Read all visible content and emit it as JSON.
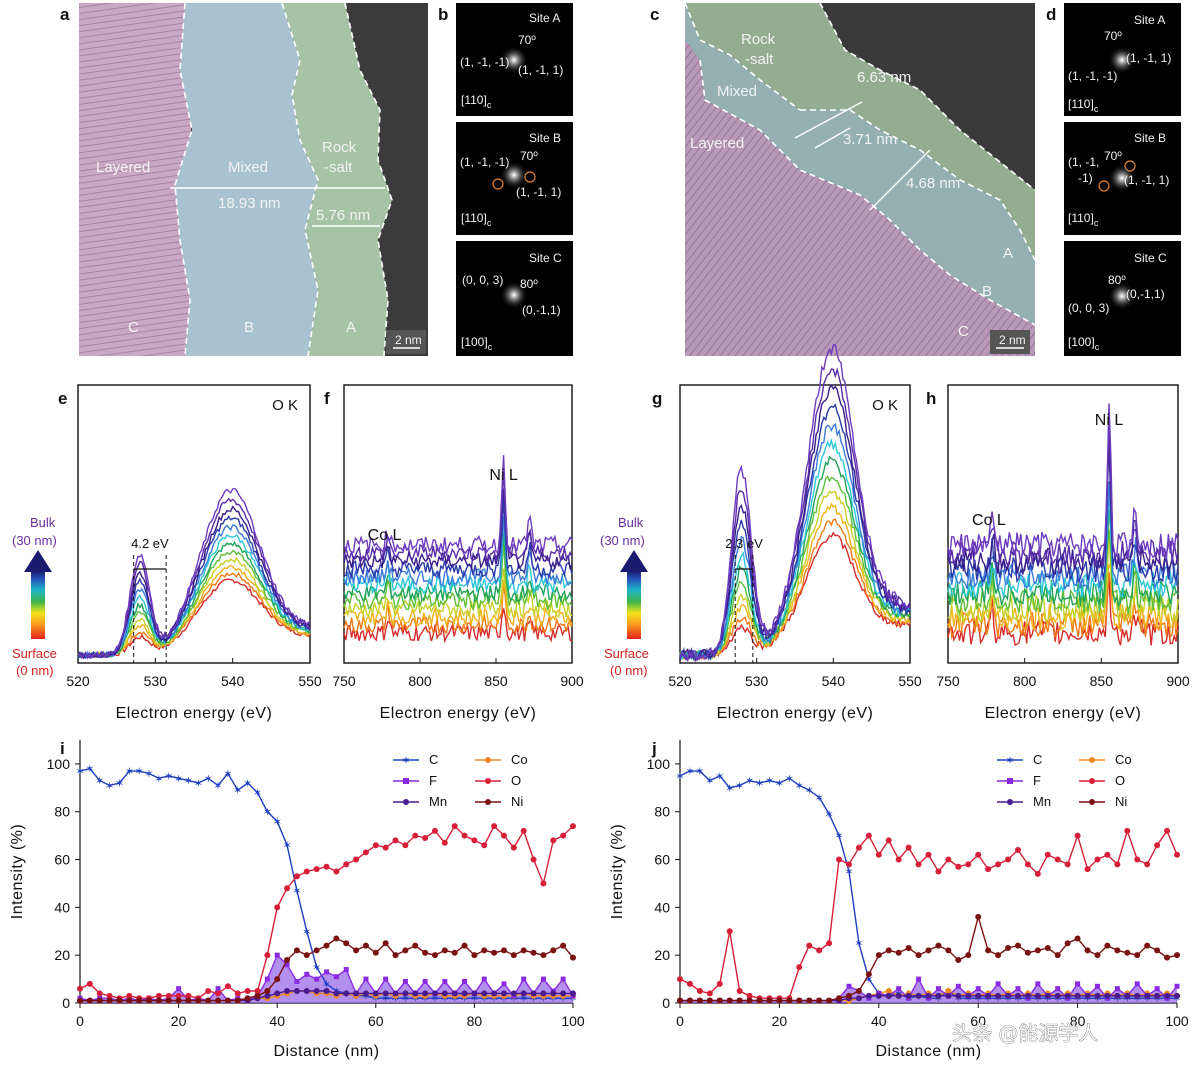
{
  "panels": {
    "a": {
      "letter": "a",
      "regions": [
        "Layered",
        "Mixed",
        "Rock",
        "-salt"
      ],
      "sites": [
        "C",
        "B",
        "A"
      ],
      "widths": [
        "18.93 nm",
        "5.76 nm"
      ],
      "scale": "2 nm"
    },
    "b": {
      "letter": "b",
      "sites": [
        {
          "title": "Site A",
          "angle": "70º",
          "spots": [
            "(1, -1, -1)",
            "(1, -1, 1)"
          ],
          "zone": "[110]",
          "sub": "c"
        },
        {
          "title": "Site B",
          "angle": "70º",
          "spots": [
            "(1, -1, -1)",
            "(1, -1, 1)"
          ],
          "zone": "[110]",
          "sub": "c"
        },
        {
          "title": "Site C",
          "angle": "80º",
          "spots": [
            "(0, 0, 3)",
            "(0,-1,1)"
          ],
          "zone": "[100]",
          "sub": "c"
        }
      ]
    },
    "c": {
      "letter": "c",
      "regions": [
        "Rock",
        "-salt",
        "Mixed",
        "Layered"
      ],
      "sites": [
        "A",
        "B",
        "C"
      ],
      "widths": [
        "6.63 nm",
        "3.71 nm",
        "4.68 nm"
      ],
      "scale": "2 nm"
    },
    "d": {
      "letter": "d",
      "sites": [
        {
          "title": "Site A",
          "angle": "70º",
          "spots": [
            "(1, -1, -1)",
            "(1, -1, 1)"
          ],
          "zone": "[110]",
          "sub": "c"
        },
        {
          "title": "Site B",
          "angle": "70º",
          "spots": [
            "(1, -1,",
            "-1)",
            "(1, -1, 1)"
          ],
          "zone": "[110]",
          "sub": "c"
        },
        {
          "title": "Site C",
          "angle": "80º",
          "spots": [
            "(0,-1,1)",
            "(0, 0, 3)"
          ],
          "zone": "[100]",
          "sub": "c"
        }
      ]
    }
  },
  "colorbar": {
    "top": [
      "Bulk",
      "(30 nm)"
    ],
    "bottom": [
      "Surface",
      "(0 nm)"
    ]
  },
  "chart_data": [
    {
      "id": "e",
      "type": "line",
      "title": "O K",
      "xlabel": "Electron energy (eV)",
      "ylabel": "",
      "xlim": [
        520,
        550
      ],
      "xticks": [
        520,
        530,
        540,
        550
      ],
      "annotation": {
        "label": "4.2 eV",
        "from": 527.2,
        "to": 531.4
      },
      "series_colors": [
        "#d62b2b",
        "#f07a1a",
        "#f2b21a",
        "#c8d12a",
        "#5fbf3a",
        "#1fa35a",
        "#2cc8d8",
        "#3a7ad8",
        "#2a3aa8",
        "#3a1f8a",
        "#5a2ca8",
        "#6e3cbf"
      ],
      "peak_energy": [
        528,
        540
      ],
      "energies": [
        520,
        521,
        522,
        523,
        524,
        525,
        526,
        527,
        528,
        529,
        530,
        531,
        532,
        533,
        534,
        535,
        536,
        537,
        538,
        539,
        540,
        541,
        542,
        543,
        544,
        545,
        546,
        547,
        548,
        549,
        550
      ]
    },
    {
      "id": "f",
      "type": "line",
      "title": "",
      "xlabel": "Electron energy (eV)",
      "xlim": [
        750,
        900
      ],
      "xticks": [
        750,
        800,
        850,
        900
      ],
      "annotations": [
        {
          "label": "Co L",
          "x": 778
        },
        {
          "label": "Ni L",
          "x": 855
        }
      ]
    },
    {
      "id": "g",
      "type": "line",
      "title": "O K",
      "xlabel": "Electron energy (eV)",
      "xlim": [
        520,
        550
      ],
      "xticks": [
        520,
        530,
        540,
        550
      ],
      "annotation": {
        "label": "2.3 eV",
        "from": 527.2,
        "to": 529.5
      }
    },
    {
      "id": "h",
      "type": "line",
      "title": "",
      "xlabel": "Electron energy (eV)",
      "xlim": [
        750,
        900
      ],
      "xticks": [
        750,
        800,
        850,
        900
      ],
      "annotations": [
        {
          "label": "Co L",
          "x": 778
        },
        {
          "label": "Ni L",
          "x": 855
        }
      ]
    },
    {
      "id": "i",
      "type": "line",
      "xlabel": "Distance (nm)",
      "ylabel": "Intensity (%)",
      "xlim": [
        0,
        100
      ],
      "ylim": [
        0,
        110
      ],
      "xticks": [
        0,
        20,
        40,
        60,
        80,
        100
      ],
      "yticks": [
        0,
        20,
        40,
        60,
        80,
        100
      ],
      "legend": [
        "C",
        "Co",
        "F",
        "O",
        "Mn",
        "Ni"
      ],
      "x": [
        0,
        2,
        4,
        6,
        8,
        10,
        12,
        14,
        16,
        18,
        20,
        22,
        24,
        26,
        28,
        30,
        32,
        34,
        36,
        38,
        40,
        42,
        44,
        46,
        48,
        50,
        52,
        54,
        56,
        58,
        60,
        62,
        64,
        66,
        68,
        70,
        72,
        74,
        76,
        78,
        80,
        82,
        84,
        86,
        88,
        90,
        92,
        94,
        96,
        98,
        100
      ],
      "series": [
        {
          "name": "C",
          "color": "#1f3fbf",
          "marker": "star",
          "values": [
            97,
            98,
            93,
            91,
            92,
            97,
            97,
            96,
            94,
            95,
            94,
            93,
            92,
            94,
            91,
            96,
            89,
            92,
            88,
            80,
            76,
            66,
            47,
            30,
            15,
            8,
            5,
            4,
            3,
            3,
            2,
            2,
            2,
            2,
            2,
            2,
            2,
            2,
            2,
            2,
            2,
            2,
            2,
            2,
            2,
            2,
            2,
            2,
            2,
            2,
            2
          ]
        },
        {
          "name": "Co",
          "color": "#f08a1f",
          "marker": "circle",
          "values": [
            1,
            1,
            1,
            1,
            1,
            1,
            1,
            1,
            1,
            1,
            1,
            1,
            1,
            1,
            1,
            1,
            1,
            1,
            2,
            2,
            3,
            4,
            5,
            5,
            4,
            4,
            3,
            4,
            3,
            4,
            3,
            4,
            3,
            4,
            3,
            3,
            4,
            3,
            3,
            3,
            4,
            3,
            3,
            3,
            3,
            4,
            3,
            3,
            3,
            3,
            3
          ]
        },
        {
          "name": "F",
          "color": "#8a2be2",
          "marker": "square",
          "values": [
            2,
            1,
            2,
            2,
            1,
            2,
            1,
            2,
            1,
            2,
            6,
            1,
            2,
            1,
            6,
            1,
            2,
            1,
            3,
            10,
            20,
            16,
            9,
            12,
            10,
            13,
            11,
            14,
            4,
            10,
            4,
            10,
            4,
            9,
            4,
            9,
            4,
            9,
            4,
            9,
            4,
            10,
            4,
            8,
            3,
            10,
            4,
            10,
            5,
            10,
            3
          ]
        },
        {
          "name": "O",
          "color": "#d81f3a",
          "marker": "circle",
          "values": [
            6,
            8,
            4,
            3,
            2,
            3,
            2,
            2,
            3,
            3,
            3,
            3,
            2,
            5,
            4,
            7,
            4,
            5,
            5,
            20,
            40,
            48,
            53,
            55,
            56,
            57,
            55,
            58,
            60,
            63,
            66,
            65,
            68,
            66,
            70,
            69,
            72,
            67,
            74,
            70,
            68,
            66,
            74,
            70,
            65,
            72,
            60,
            50,
            68,
            70,
            74
          ]
        },
        {
          "name": "Mn",
          "color": "#4a1a8f",
          "marker": "circle",
          "values": [
            1,
            1,
            1,
            1,
            1,
            1,
            1,
            1,
            1,
            1,
            1,
            1,
            1,
            1,
            1,
            1,
            1,
            1,
            2,
            3,
            4,
            5,
            5,
            5,
            5,
            5,
            4,
            4,
            4,
            4,
            4,
            4,
            4,
            4,
            4,
            4,
            4,
            4,
            4,
            4,
            4,
            4,
            4,
            4,
            4,
            4,
            4,
            4,
            4,
            4,
            4
          ]
        },
        {
          "name": "Ni",
          "color": "#7a1212",
          "marker": "circle",
          "values": [
            1,
            1,
            1,
            1,
            1,
            1,
            1,
            1,
            1,
            1,
            1,
            1,
            1,
            1,
            1,
            1,
            1,
            2,
            3,
            5,
            10,
            18,
            22,
            20,
            22,
            24,
            27,
            25,
            22,
            24,
            21,
            25,
            20,
            22,
            24,
            21,
            20,
            22,
            21,
            24,
            20,
            22,
            21,
            22,
            20,
            22,
            21,
            20,
            22,
            24,
            19
          ]
        }
      ]
    },
    {
      "id": "j",
      "type": "line",
      "xlabel": "Distance (nm)",
      "ylabel": "Intensity (%)",
      "xlim": [
        0,
        100
      ],
      "ylim": [
        0,
        110
      ],
      "xticks": [
        0,
        20,
        40,
        60,
        80,
        100
      ],
      "yticks": [
        0,
        20,
        40,
        60,
        80,
        100
      ],
      "legend": [
        "C",
        "Co",
        "F",
        "O",
        "Mn",
        "Ni"
      ],
      "x": [
        0,
        2,
        4,
        6,
        8,
        10,
        12,
        14,
        16,
        18,
        20,
        22,
        24,
        26,
        28,
        30,
        32,
        34,
        36,
        38,
        40,
        42,
        44,
        46,
        48,
        50,
        52,
        54,
        56,
        58,
        60,
        62,
        64,
        66,
        68,
        70,
        72,
        74,
        76,
        78,
        80,
        82,
        84,
        86,
        88,
        90,
        92,
        94,
        96,
        98,
        100
      ],
      "series": [
        {
          "name": "C",
          "color": "#1f3fbf",
          "marker": "star",
          "values": [
            95,
            97,
            97,
            93,
            95,
            90,
            91,
            93,
            92,
            93,
            92,
            94,
            91,
            89,
            86,
            79,
            70,
            55,
            25,
            10,
            4,
            3,
            4,
            2,
            3,
            2,
            2,
            5,
            2,
            2,
            2,
            2,
            2,
            2,
            2,
            2,
            2,
            2,
            2,
            2,
            2,
            2,
            2,
            2,
            2,
            2,
            2,
            2,
            2,
            2,
            2
          ]
        },
        {
          "name": "Co",
          "color": "#f08a1f",
          "marker": "circle",
          "values": [
            1,
            1,
            1,
            1,
            1,
            1,
            1,
            1,
            1,
            1,
            1,
            1,
            1,
            1,
            1,
            1,
            1,
            1,
            2,
            3,
            4,
            5,
            3,
            4,
            3,
            4,
            3,
            5,
            3,
            4,
            3,
            4,
            3,
            4,
            3,
            4,
            3,
            4,
            3,
            4,
            3,
            4,
            3,
            4,
            3,
            4,
            3,
            4,
            3,
            4,
            3
          ]
        },
        {
          "name": "F",
          "color": "#8a2be2",
          "marker": "square",
          "values": [
            1,
            1,
            1,
            1,
            1,
            1,
            1,
            1,
            1,
            1,
            1,
            1,
            1,
            1,
            1,
            1,
            2,
            7,
            5,
            2,
            4,
            3,
            6,
            2,
            10,
            2,
            6,
            3,
            7,
            3,
            6,
            3,
            8,
            3,
            6,
            2,
            8,
            3,
            6,
            2,
            8,
            3,
            7,
            2,
            6,
            3,
            8,
            3,
            6,
            2,
            7
          ]
        },
        {
          "name": "O",
          "color": "#d81f3a",
          "marker": "circle",
          "values": [
            10,
            8,
            5,
            4,
            8,
            30,
            5,
            3,
            2,
            2,
            2,
            2,
            15,
            24,
            22,
            25,
            60,
            58,
            65,
            70,
            62,
            68,
            60,
            65,
            58,
            62,
            55,
            60,
            57,
            58,
            62,
            56,
            58,
            60,
            64,
            58,
            54,
            62,
            60,
            58,
            70,
            56,
            60,
            62,
            58,
            72,
            60,
            58,
            66,
            72,
            62
          ]
        },
        {
          "name": "Mn",
          "color": "#4a1a8f",
          "marker": "circle",
          "values": [
            1,
            1,
            1,
            1,
            1,
            1,
            1,
            1,
            1,
            1,
            1,
            1,
            1,
            1,
            1,
            1,
            1,
            2,
            2,
            3,
            3,
            3,
            3,
            3,
            3,
            3,
            3,
            3,
            3,
            3,
            3,
            3,
            3,
            3,
            3,
            3,
            3,
            3,
            3,
            3,
            3,
            3,
            3,
            3,
            3,
            3,
            3,
            3,
            3,
            3,
            3
          ]
        },
        {
          "name": "Ni",
          "color": "#7a1212",
          "marker": "circle",
          "values": [
            1,
            1,
            1,
            1,
            1,
            1,
            1,
            1,
            1,
            1,
            1,
            1,
            1,
            1,
            1,
            1,
            2,
            3,
            5,
            12,
            20,
            22,
            21,
            23,
            20,
            22,
            24,
            22,
            18,
            20,
            36,
            22,
            20,
            23,
            24,
            21,
            22,
            23,
            20,
            25,
            27,
            22,
            20,
            24,
            22,
            21,
            20,
            24,
            22,
            19,
            20
          ]
        }
      ]
    }
  ],
  "watermark": "头条 @能源学人"
}
